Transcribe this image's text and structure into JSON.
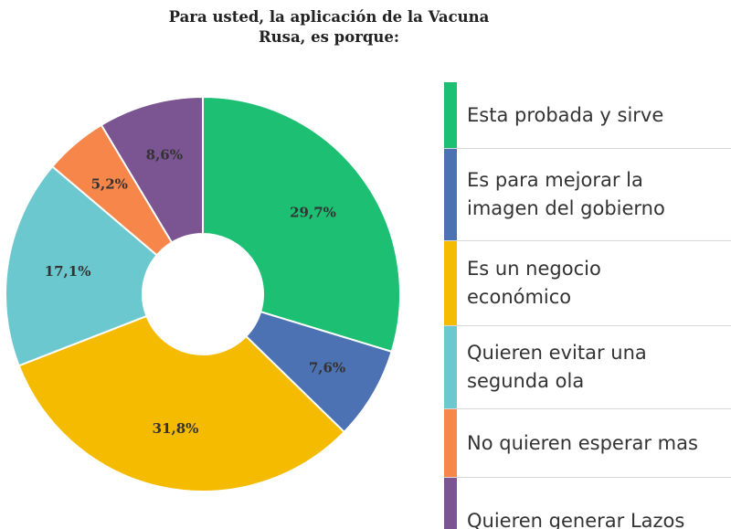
{
  "chart_data": {
    "type": "pie",
    "title": "Para usted, la aplicación de la Vacuna\nRusa, es porque:",
    "donut": true,
    "legend_position": "right",
    "slices": [
      {
        "label": "Esta probada y sirve",
        "value": 29.7,
        "value_label": "29,7%",
        "color": "#1dbf73"
      },
      {
        "label": "Es para mejorar la imagen del gobierno",
        "value": 7.6,
        "value_label": "7,6%",
        "color": "#4d72b3"
      },
      {
        "label": "Es un negocio económico",
        "value": 31.8,
        "value_label": "31,8%",
        "color": "#f5bb00"
      },
      {
        "label": "Quieren evitar una segunda ola",
        "value": 17.1,
        "value_label": "17,1%",
        "color": "#6cc8cf"
      },
      {
        "label": "No quieren esperar mas",
        "value": 5.2,
        "value_label": "5,2%",
        "color": "#f7864a"
      },
      {
        "label": "Quieren generar Lazos",
        "value": 8.6,
        "value_label": "8,6%",
        "color": "#7b5592"
      }
    ]
  }
}
